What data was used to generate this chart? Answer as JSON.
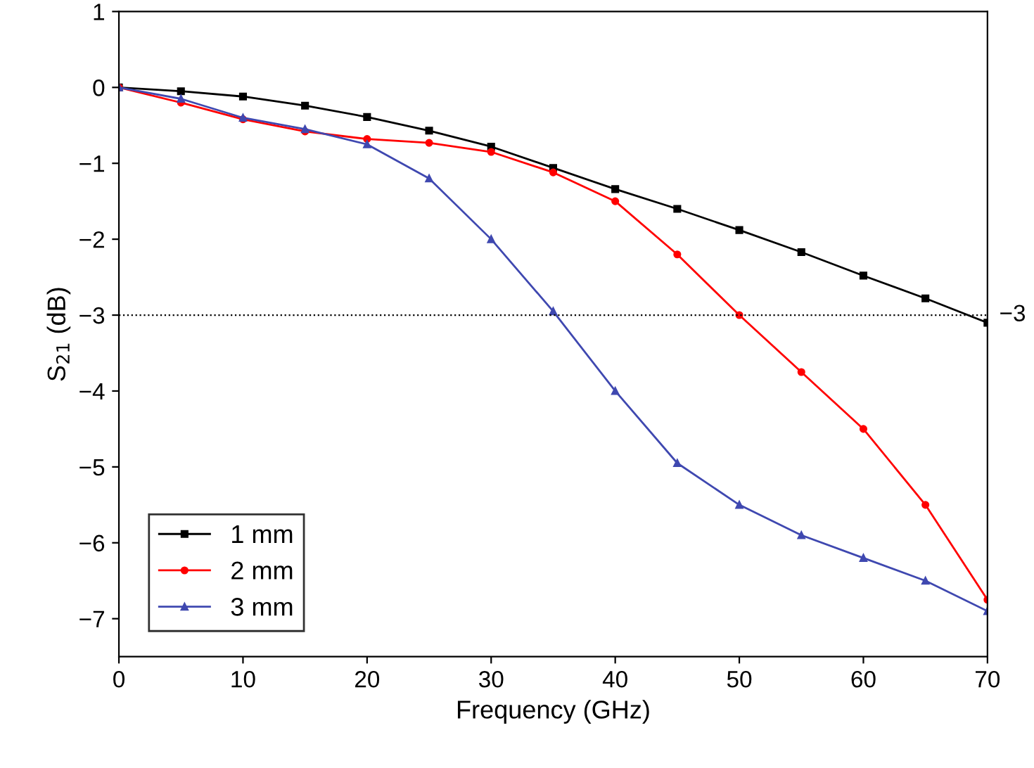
{
  "chart_data": {
    "type": "line",
    "xlabel": "Frequency (GHz)",
    "ylabel": "S$_{21}$ (dB)",
    "x": [
      0,
      5,
      10,
      15,
      20,
      25,
      30,
      35,
      40,
      45,
      50,
      55,
      60,
      65,
      70
    ],
    "series": [
      {
        "name": "1 mm",
        "color": "#000000",
        "marker": "square",
        "values": [
          0,
          -0.05,
          -0.12,
          -0.24,
          -0.39,
          -0.57,
          -0.78,
          -1.06,
          -1.34,
          -1.6,
          -1.88,
          -2.17,
          -2.48,
          -2.78,
          -3.1
        ]
      },
      {
        "name": "2 mm",
        "color": "#ff0000",
        "marker": "circle",
        "values": [
          0,
          -0.2,
          -0.42,
          -0.58,
          -0.68,
          -0.73,
          -0.85,
          -1.12,
          -1.5,
          -2.2,
          -3.0,
          -3.75,
          -4.5,
          -5.5,
          -6.75
        ]
      },
      {
        "name": "3 mm",
        "color": "#3f48b0",
        "marker": "triangle",
        "values": [
          0,
          -0.15,
          -0.4,
          -0.55,
          -0.75,
          -1.2,
          -2.0,
          -2.95,
          -4.0,
          -4.95,
          -5.5,
          -5.9,
          -6.2,
          -6.5,
          -6.9
        ]
      }
    ],
    "xlim": [
      0,
      70
    ],
    "xticks": [
      0,
      10,
      20,
      30,
      40,
      50,
      60,
      70
    ],
    "ylim": [
      -7.5,
      1
    ],
    "yticks": [
      1,
      0,
      -1,
      -2,
      -3,
      -4,
      -5,
      -6,
      -7
    ],
    "ref_lines": [
      {
        "axis": "y",
        "value": -3,
        "label": "−3",
        "color": "#000000",
        "line_style": "dotted"
      }
    ],
    "legend": "bottom left",
    "grid": false
  }
}
